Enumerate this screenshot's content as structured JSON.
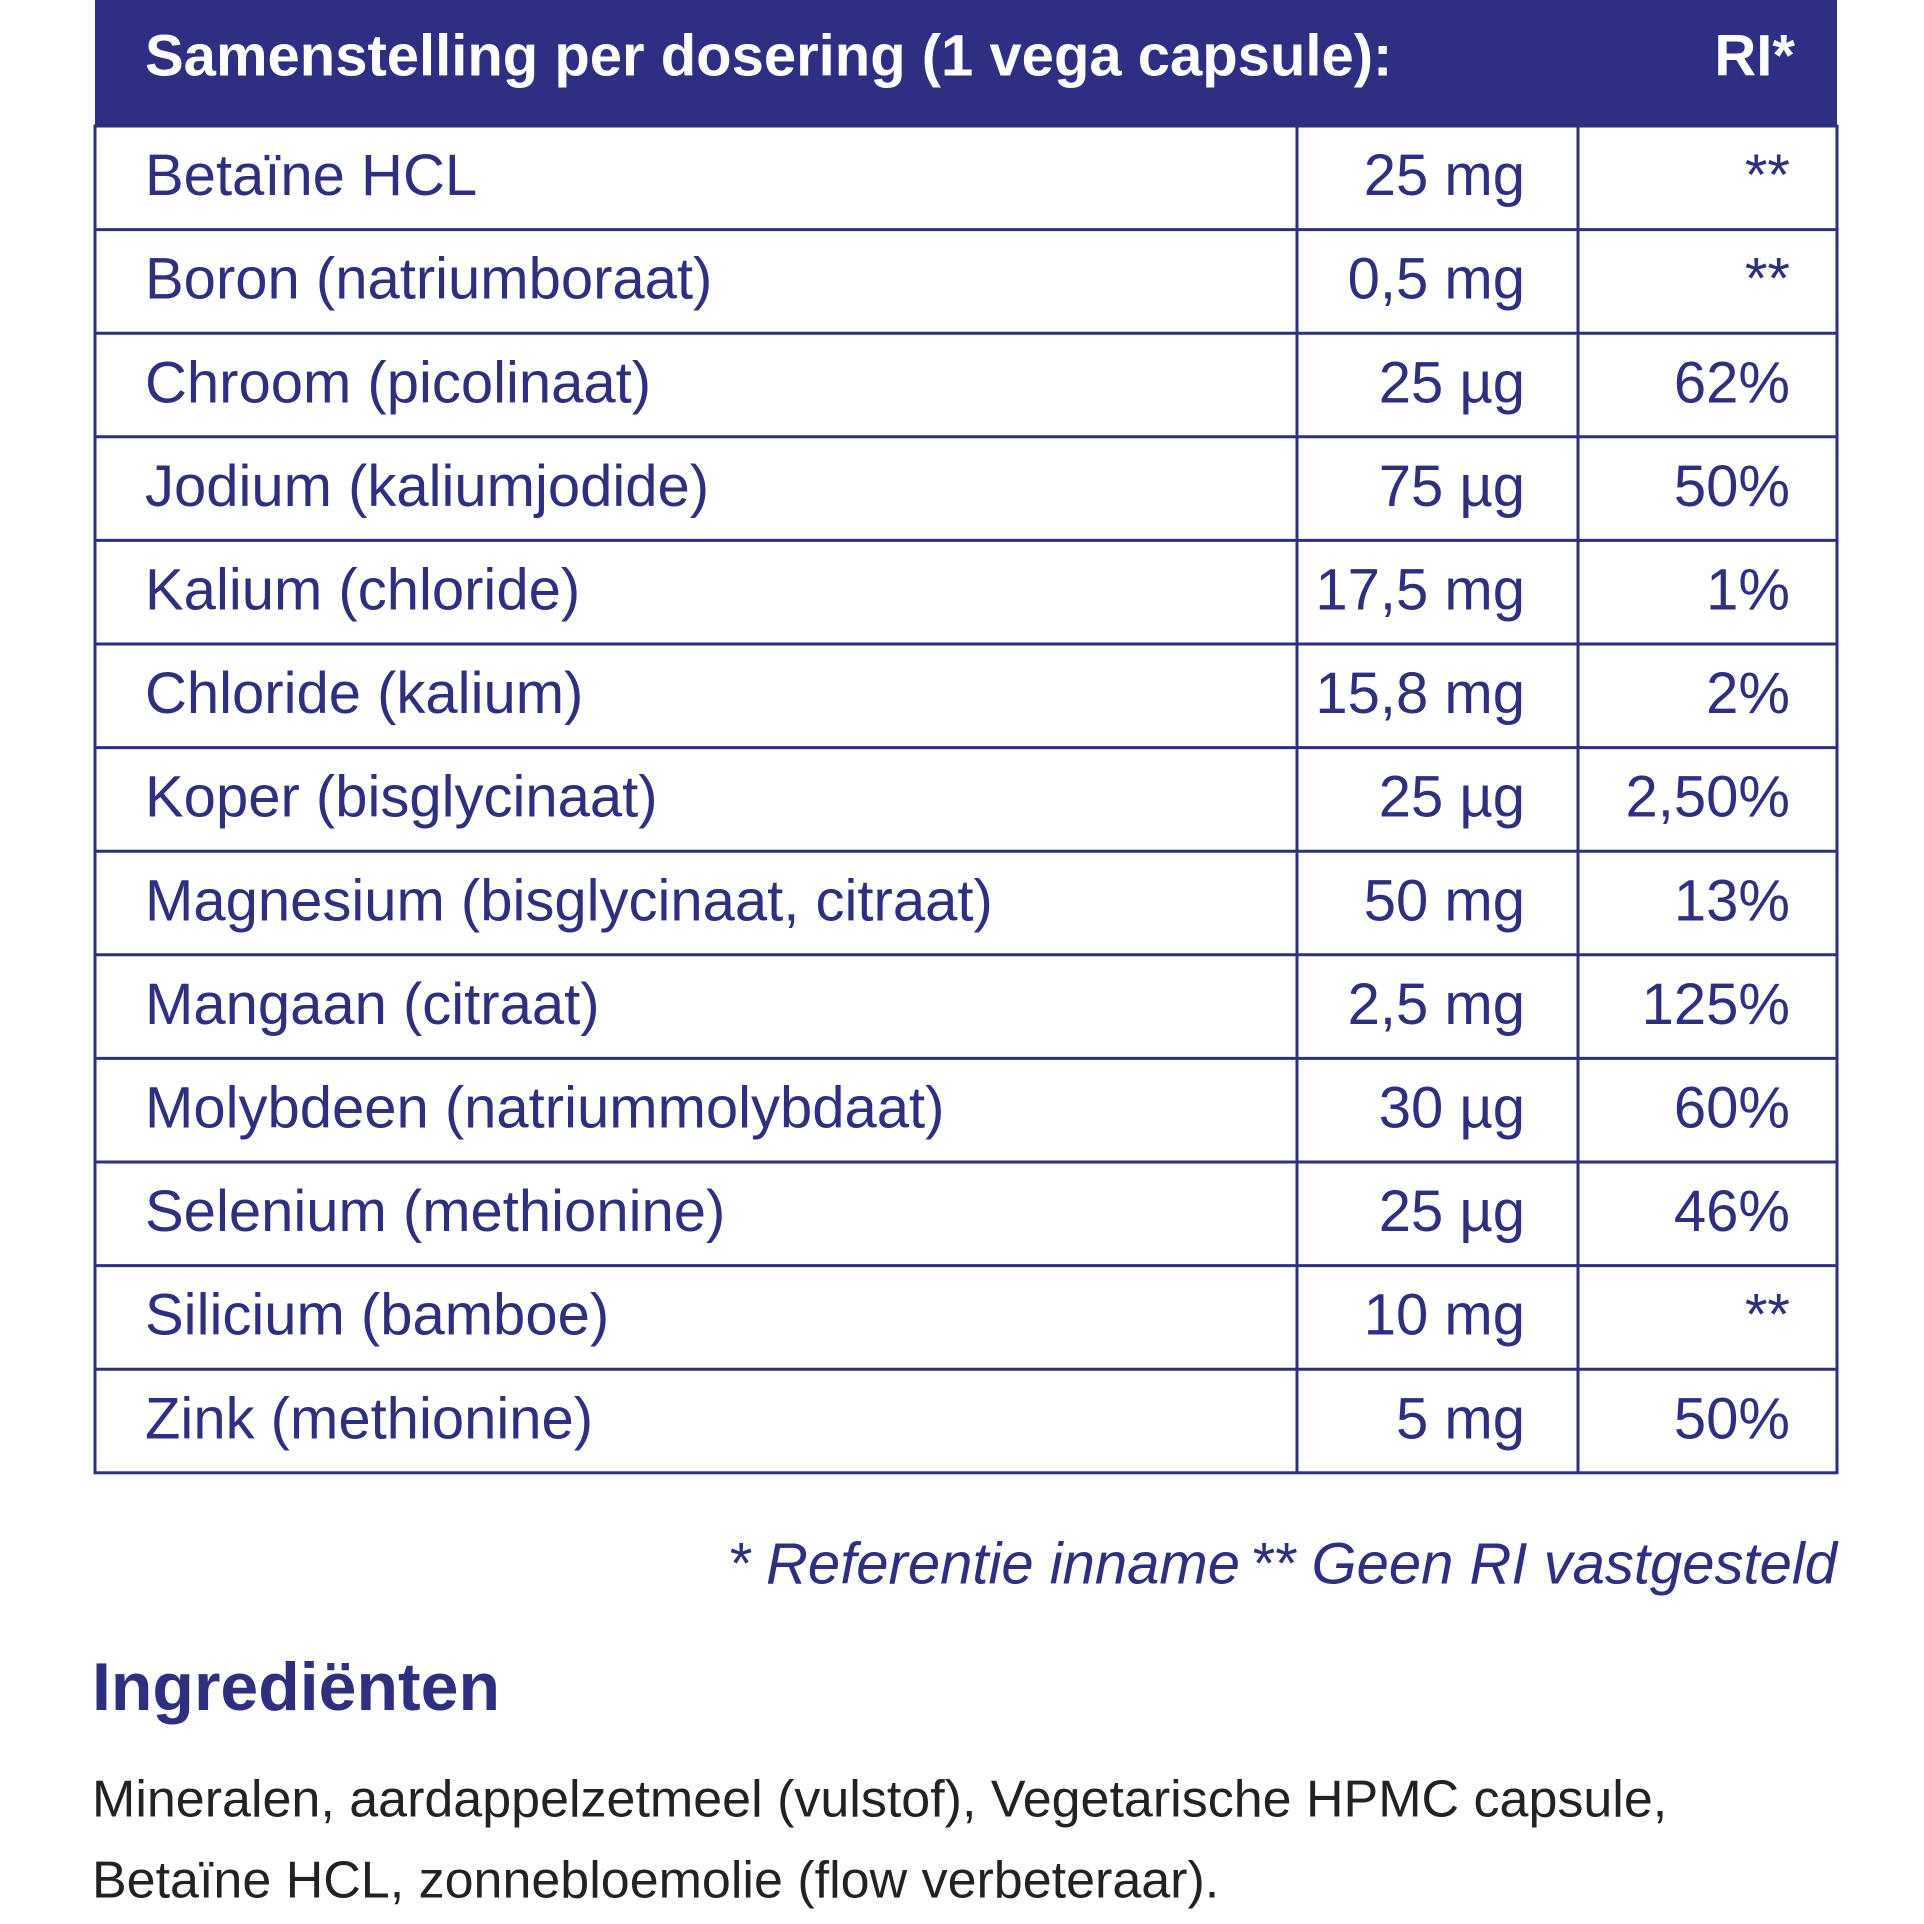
{
  "header": {
    "title": "Samenstelling per dosering (1 vega capsule):",
    "ri": "RI*"
  },
  "table": {
    "rows": [
      [
        "Betaïne HCL",
        "25 mg",
        "**"
      ],
      [
        "Boron (natriumboraat)",
        "0,5 mg",
        "**"
      ],
      [
        "Chroom (picolinaat)",
        "25 µg",
        "62%"
      ],
      [
        "Jodium (kaliumjodide)",
        "75 µg",
        "50%"
      ],
      [
        "Kalium (chloride)",
        "17,5 mg",
        "1%"
      ],
      [
        "Chloride (kalium)",
        "15,8 mg",
        "2%"
      ],
      [
        "Koper (bisglycinaat)",
        "25 µg",
        "2,50%"
      ],
      [
        "Magnesium (bisglycinaat, citraat)",
        "50 mg",
        "13%"
      ],
      [
        "Mangaan (citraat)",
        "2,5 mg",
        "125%"
      ],
      [
        "Molybdeen (natriummolybdaat)",
        "30 µg",
        "60%"
      ],
      [
        "Selenium (methionine)",
        "25 µg",
        "46%"
      ],
      [
        "Silicium (bamboe)",
        "10 mg",
        "**"
      ],
      [
        "Zink (methionine)",
        "5 mg",
        "50%"
      ]
    ]
  },
  "footnotes": [
    "* Referentie inname",
    "** Geen RI vastgesteld"
  ],
  "ingredients": {
    "title": "Ingrediënten",
    "lines": [
      "Mineralen, aardappelzetmeel (vulstof), Vegetarische HPMC capsule,",
      "Betaïne HCL, zonnebloemolie (flow verbeteraar)."
    ]
  }
}
